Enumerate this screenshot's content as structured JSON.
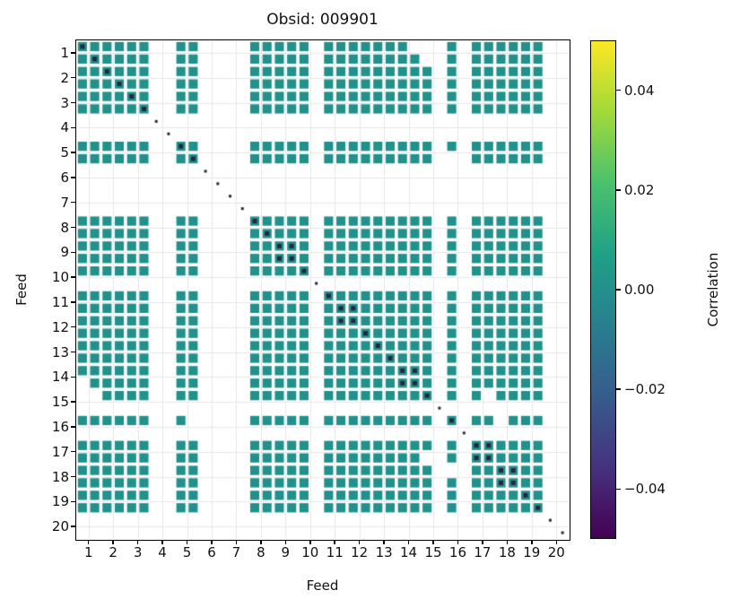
{
  "chart_data": {
    "type": "heatmap",
    "title": "Obsid: 009901",
    "xlabel": "Feed",
    "ylabel": "Feed",
    "x_tick_labels": [
      "1",
      "2",
      "3",
      "4",
      "5",
      "6",
      "7",
      "8",
      "9",
      "10",
      "11",
      "12",
      "13",
      "14",
      "15",
      "16",
      "17",
      "18",
      "19",
      "20"
    ],
    "y_tick_labels": [
      "1",
      "2",
      "3",
      "4",
      "5",
      "6",
      "7",
      "8",
      "9",
      "10",
      "11",
      "12",
      "13",
      "14",
      "15",
      "16",
      "17",
      "18",
      "19",
      "20"
    ],
    "n_feeds": 20,
    "bands_per_feed": 2,
    "vmin": -0.05,
    "vmax": 0.05,
    "base_value": 0.0,
    "cell_color": "#21918c",
    "diag_color": "#26263c",
    "grid_color": "#e7e7e7",
    "missing_feeds": [
      4,
      6,
      7,
      20
    ],
    "missing_bands": [
      19,
      29,
      31
    ],
    "extra_missing_cells": [
      [
        0,
        27
      ],
      [
        0,
        28
      ],
      [
        1,
        28
      ],
      [
        27,
        0
      ],
      [
        28,
        0
      ],
      [
        28,
        1
      ],
      [
        28,
        33
      ],
      [
        33,
        28
      ],
      [
        30,
        34
      ],
      [
        34,
        30
      ],
      [
        9,
        30
      ],
      [
        30,
        9
      ]
    ],
    "extra_dark_cells": [
      [
        16,
        17
      ],
      [
        17,
        16
      ],
      [
        21,
        22
      ],
      [
        22,
        21
      ],
      [
        26,
        27
      ],
      [
        27,
        26
      ],
      [
        32,
        33
      ],
      [
        33,
        32
      ],
      [
        34,
        35
      ],
      [
        35,
        34
      ]
    ],
    "colorbar": {
      "label": "Correlation",
      "tick_labels": [
        "0.04",
        "0.02",
        "0.00",
        "−0.02",
        "−0.04"
      ],
      "tick_values": [
        0.04,
        0.02,
        0.0,
        -0.02,
        -0.04
      ],
      "colormap": "viridis",
      "gradient_stops": [
        "#440154",
        "#46327e",
        "#365c8d",
        "#277f8e",
        "#1fa187",
        "#4ac16d",
        "#a0da39",
        "#fde725"
      ]
    }
  }
}
